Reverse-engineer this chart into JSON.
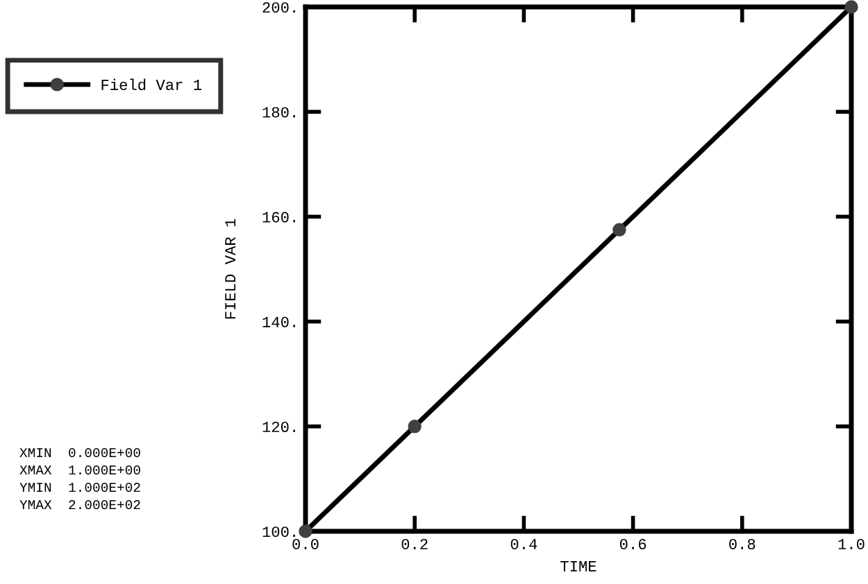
{
  "chart_data": {
    "type": "line",
    "xlabel": "TIME",
    "ylabel": "FIELD VAR 1",
    "x": [
      0.0,
      0.2,
      0.575,
      1.0
    ],
    "series": [
      {
        "name": "Field Var 1",
        "color": "#000000",
        "values": [
          100,
          120,
          157.5,
          200
        ]
      }
    ],
    "marker": "circle",
    "line_style": "solid",
    "legend": "top left",
    "grid": false,
    "xlim": [
      0.0,
      1.0
    ],
    "xticks": [
      {
        "value": 0.0,
        "label": "0.0"
      },
      {
        "value": 0.2,
        "label": "0.2"
      },
      {
        "value": 0.4,
        "label": "0.4"
      },
      {
        "value": 0.6,
        "label": "0.6"
      },
      {
        "value": 0.8,
        "label": "0.8"
      },
      {
        "value": 1.0,
        "label": "1.0"
      }
    ],
    "ylim": [
      100,
      200
    ],
    "yticks": [
      {
        "value": 100,
        "label": "100."
      },
      {
        "value": 120,
        "label": "120."
      },
      {
        "value": 140,
        "label": "140."
      },
      {
        "value": 160,
        "label": "160."
      },
      {
        "value": 180,
        "label": "180."
      },
      {
        "value": 200,
        "label": "200."
      }
    ],
    "annotations": [
      "XMIN  0.000E+00",
      "XMAX  1.000E+00",
      "YMIN  1.000E+02",
      "YMAX  2.000E+02"
    ]
  }
}
